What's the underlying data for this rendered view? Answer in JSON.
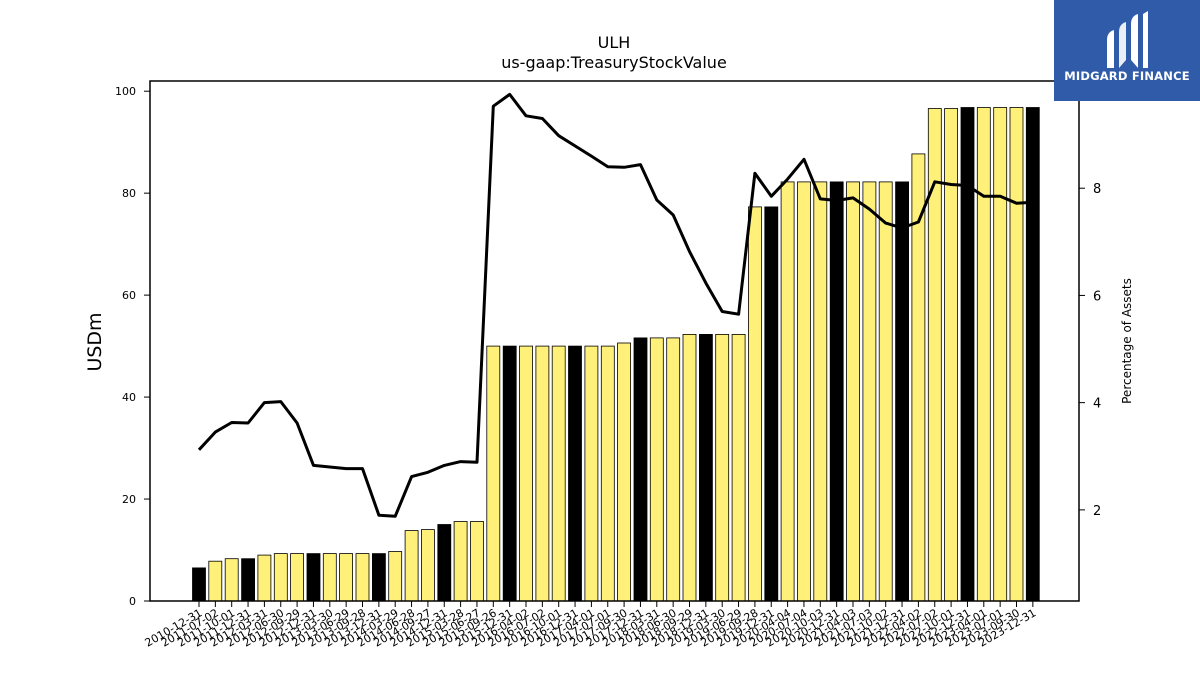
{
  "brand": {
    "name": "MIDGARD FINANCE",
    "color": "#2f5ba8"
  },
  "chart_data": {
    "type": "bar",
    "title": "ULH",
    "subtitle": "us-gaap:TreasuryStockValue",
    "ylabel": "USDm",
    "y2label": "Percentage of Assets",
    "ylim": [
      0,
      102
    ],
    "y2lim": [
      0.3,
      10.0
    ],
    "yticks": [
      0,
      20,
      40,
      60,
      80,
      100
    ],
    "y2ticks": [
      2,
      4,
      6,
      8
    ],
    "colors": {
      "annual": "#000000",
      "quarterly": "#fff07a",
      "line": "#000000"
    },
    "categories": [
      "2010-12-31",
      "2011-07-02",
      "2011-10-01",
      "2011-12-31",
      "2012-03-31",
      "2012-06-30",
      "2012-09-29",
      "2012-12-31",
      "2013-03-30",
      "2013-06-29",
      "2013-09-28",
      "2013-12-31",
      "2014-03-29",
      "2014-06-28",
      "2014-09-27",
      "2014-12-31",
      "2015-03-28",
      "2015-06-27",
      "2015-09-26",
      "2015-12-31",
      "2016-04-02",
      "2016-07-02",
      "2016-10-01",
      "2016-12-31",
      "2017-04-01",
      "2017-07-01",
      "2017-09-30",
      "2017-12-31",
      "2018-03-31",
      "2018-06-30",
      "2018-09-29",
      "2018-12-31",
      "2019-03-30",
      "2019-06-29",
      "2019-09-28",
      "2019-12-31",
      "2020-04-04",
      "2020-07-04",
      "2020-10-03",
      "2020-12-31",
      "2021-04-03",
      "2021-07-03",
      "2021-10-02",
      "2021-12-31",
      "2022-04-02",
      "2022-07-02",
      "2022-10-01",
      "2022-12-31",
      "2023-04-01",
      "2023-07-01",
      "2023-09-30",
      "2023-12-31"
    ],
    "tick_labels": [
      "2010-12-31",
      "2011-07-02",
      "2011-10-01",
      "2011-12-31",
      "2012-03-31",
      "2012-06-30",
      "2012-09-29",
      "2012-12-31",
      "2013-03-30",
      "2013-06-29",
      "2013-09-28",
      "2013-12-31",
      "2014-03-29",
      "2014-06-28",
      "2014-09-27",
      "2014-12-31",
      "2015-03-28",
      "2015-06-27",
      "2015-09-26",
      "2015-12-31",
      "2016-04-02",
      "2016-07-02",
      "2016-10-01",
      "2016-12-31",
      "2017-04-01",
      "2017-07-01",
      "2017-09-30",
      "2017-12-31",
      "2018-03-31",
      "2018-06-30",
      "2018-09-29",
      "2018-12-31",
      "2019-03-30",
      "2019-06-29",
      "2019-09-28",
      "2019-12-31",
      "2020-04-04",
      "2020-07-04",
      "2020-10-03",
      "2020-12-31",
      "2021-04-03",
      "2021-07-03",
      "2021-10-02",
      "2021-12-31",
      "2022-04-02",
      "2022-07-02",
      "2022-10-01",
      "2022-12-31",
      "2023-04-01",
      "2023-07-01",
      "2023-09-30",
      "2023-12-31"
    ],
    "series": [
      {
        "type": "bar",
        "values": [
          6.5,
          7.8,
          8.3,
          8.3,
          9.0,
          9.3,
          9.3,
          9.3,
          9.3,
          9.3,
          9.3,
          9.3,
          9.7,
          13.8,
          14.0,
          15.0,
          15.6,
          15.6,
          50.0,
          50.0,
          50.0,
          50.0,
          50.0,
          50.0,
          50.0,
          50.0,
          50.6,
          51.6,
          51.6,
          51.6,
          52.3,
          52.3,
          52.3,
          52.3,
          77.3,
          77.3,
          82.2,
          82.2,
          82.2,
          82.2,
          82.2,
          82.2,
          82.2,
          82.2,
          87.7,
          96.6,
          96.6,
          96.8,
          96.8,
          96.8,
          96.8,
          96.8
        ],
        "annual": [
          1,
          0,
          0,
          1,
          0,
          0,
          0,
          1,
          0,
          0,
          0,
          1,
          0,
          0,
          0,
          1,
          0,
          0,
          0,
          1,
          0,
          0,
          0,
          1,
          0,
          0,
          0,
          1,
          0,
          0,
          0,
          1,
          0,
          0,
          0,
          1,
          0,
          0,
          0,
          1,
          0,
          0,
          0,
          1,
          0,
          0,
          0,
          1,
          0,
          0,
          0,
          1
        ]
      },
      {
        "type": "line",
        "axis": "right",
        "values": [
          3.12,
          3.45,
          3.63,
          3.62,
          4.0,
          4.02,
          3.62,
          2.83,
          2.8,
          2.77,
          2.77,
          1.9,
          1.88,
          2.62,
          2.7,
          2.83,
          2.9,
          2.89,
          9.53,
          9.75,
          9.35,
          9.3,
          8.98,
          8.79,
          8.6,
          8.4,
          8.39,
          8.44,
          7.78,
          7.5,
          6.82,
          6.23,
          5.7,
          5.65,
          8.28,
          7.85,
          8.17,
          8.54,
          7.8,
          7.77,
          7.82,
          7.61,
          7.35,
          7.26,
          7.37,
          8.12,
          8.07,
          8.05,
          7.85,
          7.85,
          7.72,
          7.74
        ]
      }
    ]
  }
}
